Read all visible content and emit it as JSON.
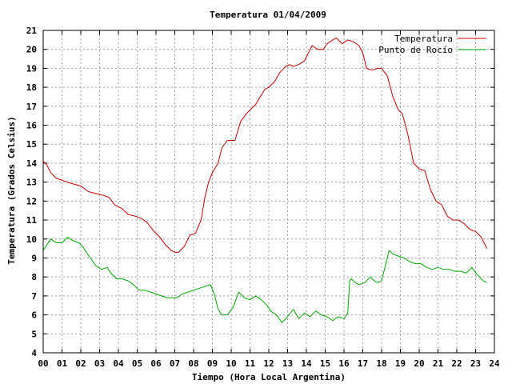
{
  "chart_data": {
    "type": "line",
    "title": "Temperatura 01/04/2009",
    "xlabel": "Tiempo (Hora Local Argentina)",
    "ylabel": "Temperatura (Grados Celsius)",
    "xlim": [
      0,
      24
    ],
    "ylim": [
      4,
      21
    ],
    "x_ticks": [
      "00",
      "01",
      "02",
      "03",
      "04",
      "05",
      "06",
      "07",
      "08",
      "09",
      "10",
      "11",
      "12",
      "13",
      "14",
      "15",
      "16",
      "17",
      "18",
      "19",
      "20",
      "21",
      "22",
      "23",
      "24"
    ],
    "y_ticks": [
      4,
      5,
      6,
      7,
      8,
      9,
      10,
      11,
      12,
      13,
      14,
      15,
      16,
      17,
      18,
      19,
      20,
      21
    ],
    "grid": true,
    "legend_position": "top-right",
    "series": [
      {
        "name": "Temperatura",
        "color": "#cc0000",
        "x": [
          0.0,
          0.2,
          0.4,
          0.7,
          1.0,
          1.3,
          1.6,
          2.0,
          2.4,
          2.8,
          3.2,
          3.5,
          3.8,
          4.2,
          4.5,
          4.9,
          5.2,
          5.5,
          5.9,
          6.2,
          6.5,
          6.8,
          7.0,
          7.2,
          7.5,
          7.8,
          8.1,
          8.4,
          8.6,
          8.8,
          9.0,
          9.3,
          9.5,
          9.8,
          10.0,
          10.2,
          10.5,
          10.8,
          11.0,
          11.3,
          11.6,
          11.8,
          12.0,
          12.3,
          12.6,
          12.9,
          13.1,
          13.3,
          13.6,
          13.9,
          14.1,
          14.3,
          14.6,
          14.9,
          15.1,
          15.4,
          15.6,
          15.9,
          16.2,
          16.5,
          16.8,
          17.0,
          17.2,
          17.5,
          17.8,
          18.0,
          18.3,
          18.6,
          18.9,
          19.1,
          19.4,
          19.7,
          20.0,
          20.3,
          20.6,
          20.9,
          21.2,
          21.5,
          21.8,
          22.1,
          22.4,
          22.7,
          23.0,
          23.3,
          23.6
        ],
        "y": [
          14.1,
          13.9,
          13.5,
          13.2,
          13.1,
          13.0,
          12.9,
          12.8,
          12.5,
          12.4,
          12.3,
          12.2,
          11.8,
          11.6,
          11.3,
          11.2,
          11.1,
          10.9,
          10.4,
          10.1,
          9.7,
          9.4,
          9.3,
          9.3,
          9.6,
          10.2,
          10.3,
          11.0,
          12.2,
          13.0,
          13.5,
          14.0,
          14.8,
          15.2,
          15.2,
          15.2,
          16.2,
          16.6,
          16.8,
          17.1,
          17.6,
          17.9,
          18.0,
          18.3,
          18.8,
          19.1,
          19.2,
          19.1,
          19.2,
          19.4,
          19.8,
          20.2,
          20.0,
          20.0,
          20.3,
          20.5,
          20.6,
          20.3,
          20.5,
          20.4,
          20.2,
          19.8,
          19.0,
          18.9,
          19.0,
          19.0,
          18.6,
          17.5,
          16.8,
          16.6,
          15.5,
          14.0,
          13.7,
          13.6,
          12.6,
          12.0,
          11.8,
          11.2,
          11.0,
          11.0,
          10.8,
          10.5,
          10.4,
          10.1,
          9.5
        ]
      },
      {
        "name": "Punto de Rocío",
        "color": "#00aa00",
        "x": [
          0.0,
          0.2,
          0.4,
          0.7,
          1.0,
          1.3,
          1.6,
          1.9,
          2.1,
          2.3,
          2.5,
          2.8,
          3.1,
          3.4,
          3.6,
          3.9,
          4.2,
          4.5,
          4.8,
          5.1,
          5.4,
          5.7,
          6.0,
          6.3,
          6.6,
          6.9,
          7.1,
          7.4,
          7.7,
          8.0,
          8.3,
          8.6,
          8.9,
          9.1,
          9.3,
          9.5,
          9.8,
          10.1,
          10.4,
          10.7,
          11.0,
          11.3,
          11.6,
          11.9,
          12.1,
          12.4,
          12.7,
          13.0,
          13.3,
          13.6,
          13.9,
          14.2,
          14.5,
          14.8,
          15.1,
          15.4,
          15.7,
          16.0,
          16.2,
          16.3,
          16.4,
          16.6,
          16.8,
          17.1,
          17.4,
          17.6,
          17.8,
          18.0,
          18.2,
          18.4,
          18.6,
          18.9,
          19.2,
          19.5,
          19.8,
          20.1,
          20.4,
          20.7,
          21.0,
          21.3,
          21.6,
          21.9,
          22.2,
          22.5,
          22.8,
          23.1,
          23.4,
          23.6
        ],
        "y": [
          9.4,
          9.7,
          10.0,
          9.8,
          9.8,
          10.1,
          9.9,
          9.8,
          9.6,
          9.3,
          9.0,
          8.6,
          8.4,
          8.5,
          8.2,
          7.9,
          7.9,
          7.8,
          7.6,
          7.3,
          7.3,
          7.2,
          7.1,
          7.0,
          6.9,
          6.9,
          6.9,
          7.1,
          7.2,
          7.3,
          7.4,
          7.5,
          7.6,
          7.1,
          6.3,
          6.0,
          6.0,
          6.4,
          7.2,
          6.9,
          6.8,
          7.0,
          6.8,
          6.5,
          6.2,
          6.0,
          5.6,
          5.9,
          6.3,
          5.8,
          6.1,
          5.9,
          6.2,
          6.0,
          5.9,
          5.7,
          5.9,
          5.8,
          6.1,
          7.8,
          7.9,
          7.7,
          7.6,
          7.7,
          8.0,
          7.8,
          7.7,
          7.8,
          8.6,
          9.4,
          9.2,
          9.1,
          9.0,
          8.8,
          8.7,
          8.7,
          8.5,
          8.4,
          8.5,
          8.4,
          8.4,
          8.3,
          8.3,
          8.2,
          8.5,
          8.1,
          7.8,
          7.7
        ]
      }
    ]
  }
}
